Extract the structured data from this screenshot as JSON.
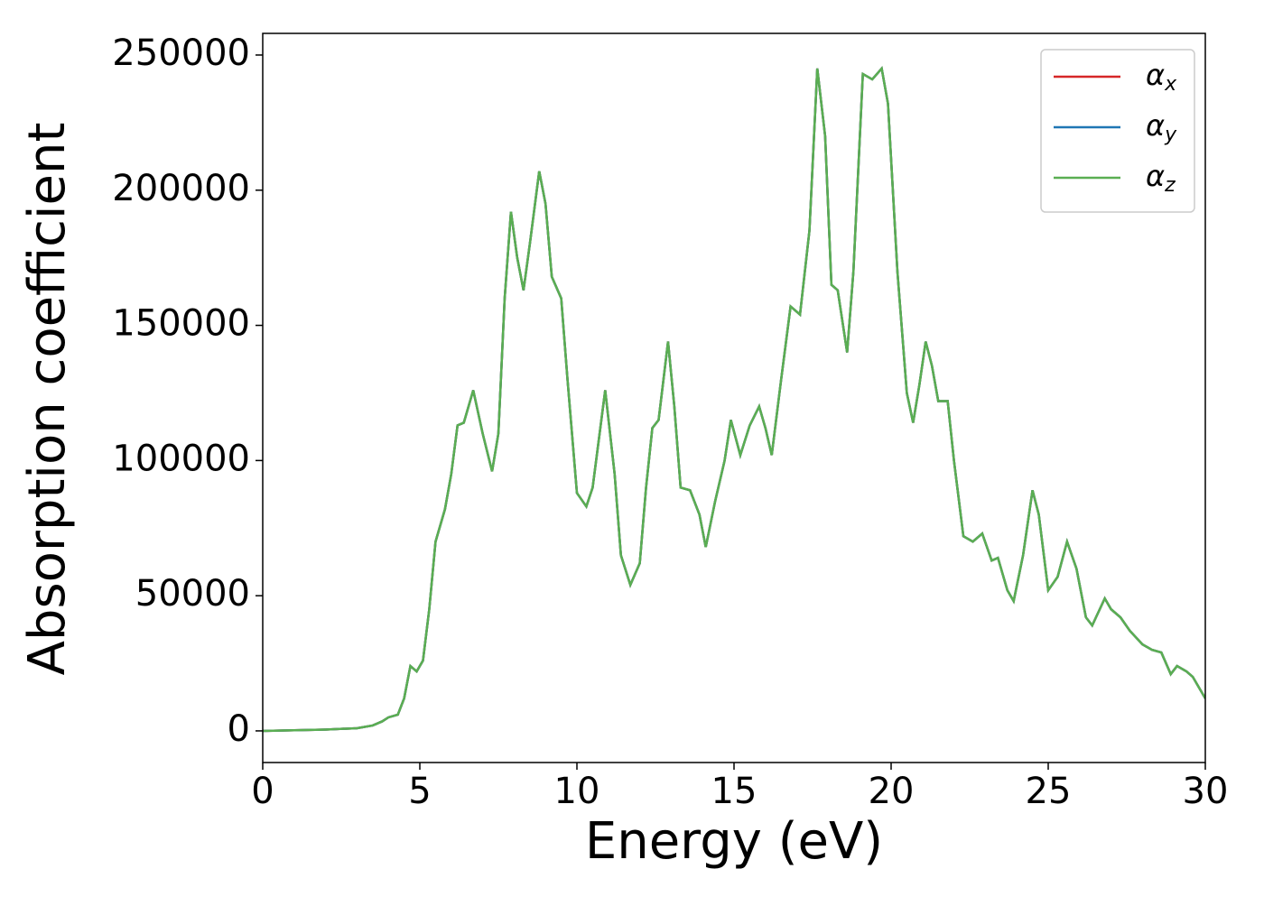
{
  "chart_data": {
    "type": "line",
    "x_label": "Energy (eV)",
    "y_label": "Absorption coefficient",
    "x": [
      0,
      2,
      3,
      3.5,
      3.8,
      4.0,
      4.3,
      4.5,
      4.7,
      4.9,
      5.1,
      5.3,
      5.5,
      5.8,
      6.0,
      6.2,
      6.4,
      6.7,
      7.0,
      7.3,
      7.5,
      7.7,
      7.9,
      8.1,
      8.3,
      8.5,
      8.8,
      9.0,
      9.2,
      9.5,
      9.7,
      10.0,
      10.3,
      10.5,
      10.9,
      11.2,
      11.4,
      11.7,
      12.0,
      12.2,
      12.4,
      12.6,
      12.9,
      13.1,
      13.3,
      13.6,
      13.9,
      14.1,
      14.4,
      14.7,
      14.9,
      15.2,
      15.5,
      15.8,
      16.0,
      16.2,
      16.5,
      16.8,
      17.1,
      17.4,
      17.65,
      17.9,
      18.1,
      18.3,
      18.6,
      18.8,
      19.1,
      19.4,
      19.7,
      19.9,
      20.2,
      20.5,
      20.7,
      20.9,
      21.1,
      21.3,
      21.5,
      21.8,
      22.0,
      22.3,
      22.6,
      22.9,
      23.2,
      23.4,
      23.7,
      23.9,
      24.2,
      24.5,
      24.7,
      25.0,
      25.3,
      25.6,
      25.9,
      26.2,
      26.4,
      26.8,
      27.0,
      27.3,
      27.6,
      28.0,
      28.3,
      28.6,
      28.9,
      29.1,
      29.4,
      29.6,
      30.0
    ],
    "series": [
      {
        "name": "αx",
        "color": "#d62728",
        "values": [
          0,
          500,
          1000,
          2000,
          3500,
          5000,
          6000,
          12000,
          24000,
          22000,
          26000,
          45000,
          70000,
          82000,
          95000,
          113000,
          114000,
          126000,
          110000,
          96000,
          110000,
          160000,
          192000,
          175000,
          163000,
          180000,
          207000,
          195000,
          168000,
          160000,
          130000,
          88000,
          83000,
          90000,
          126000,
          95000,
          65000,
          54000,
          62000,
          90000,
          112000,
          115000,
          144000,
          120000,
          90000,
          89000,
          80000,
          68000,
          85000,
          100000,
          115000,
          102000,
          113000,
          120000,
          112000,
          102000,
          130000,
          157000,
          154000,
          185000,
          245000,
          220000,
          165000,
          163000,
          140000,
          170000,
          243000,
          241000,
          245000,
          232000,
          170000,
          125000,
          114000,
          128000,
          144000,
          135000,
          122000,
          122000,
          100000,
          72000,
          70000,
          73000,
          63000,
          64000,
          52000,
          48000,
          65000,
          89000,
          80000,
          52000,
          57000,
          70000,
          60000,
          42000,
          39000,
          49000,
          45000,
          42000,
          37000,
          32000,
          30000,
          29000,
          21000,
          24000,
          22000,
          20000,
          12000
        ]
      },
      {
        "name": "αy",
        "color": "#1f77b4",
        "values": [
          0,
          500,
          1000,
          2000,
          3500,
          5000,
          6000,
          12000,
          24000,
          22000,
          26000,
          45000,
          70000,
          82000,
          95000,
          113000,
          114000,
          126000,
          110000,
          96000,
          110000,
          160000,
          192000,
          175000,
          163000,
          180000,
          207000,
          195000,
          168000,
          160000,
          130000,
          88000,
          83000,
          90000,
          126000,
          95000,
          65000,
          54000,
          62000,
          90000,
          112000,
          115000,
          144000,
          120000,
          90000,
          89000,
          80000,
          68000,
          85000,
          100000,
          115000,
          102000,
          113000,
          120000,
          112000,
          102000,
          130000,
          157000,
          154000,
          185000,
          245000,
          220000,
          165000,
          163000,
          140000,
          170000,
          243000,
          241000,
          245000,
          232000,
          170000,
          125000,
          114000,
          128000,
          144000,
          135000,
          122000,
          122000,
          100000,
          72000,
          70000,
          73000,
          63000,
          64000,
          52000,
          48000,
          65000,
          89000,
          80000,
          52000,
          57000,
          70000,
          60000,
          42000,
          39000,
          49000,
          45000,
          42000,
          37000,
          32000,
          30000,
          29000,
          21000,
          24000,
          22000,
          20000,
          12000
        ]
      },
      {
        "name": "αz",
        "color": "#5aae52",
        "values": [
          0,
          500,
          1000,
          2000,
          3500,
          5000,
          6000,
          12000,
          24000,
          22000,
          26000,
          45000,
          70000,
          82000,
          95000,
          113000,
          114000,
          126000,
          110000,
          96000,
          110000,
          160000,
          192000,
          175000,
          163000,
          180000,
          207000,
          195000,
          168000,
          160000,
          130000,
          88000,
          83000,
          90000,
          126000,
          95000,
          65000,
          54000,
          62000,
          90000,
          112000,
          115000,
          144000,
          120000,
          90000,
          89000,
          80000,
          68000,
          85000,
          100000,
          115000,
          102000,
          113000,
          120000,
          112000,
          102000,
          130000,
          157000,
          154000,
          185000,
          245000,
          220000,
          165000,
          163000,
          140000,
          170000,
          243000,
          241000,
          245000,
          232000,
          170000,
          125000,
          114000,
          128000,
          144000,
          135000,
          122000,
          122000,
          100000,
          72000,
          70000,
          73000,
          63000,
          64000,
          52000,
          48000,
          65000,
          89000,
          80000,
          52000,
          57000,
          70000,
          60000,
          42000,
          39000,
          49000,
          45000,
          42000,
          37000,
          32000,
          30000,
          29000,
          21000,
          24000,
          22000,
          20000,
          12000
        ]
      }
    ],
    "xlim": [
      0,
      30
    ],
    "xticks": [
      0,
      5,
      10,
      15,
      20,
      25,
      30
    ],
    "ylim": [
      -11700,
      258000
    ],
    "yticks": [
      0,
      50000,
      100000,
      150000,
      200000,
      250000
    ],
    "legend": "upper right",
    "grid": false
  }
}
